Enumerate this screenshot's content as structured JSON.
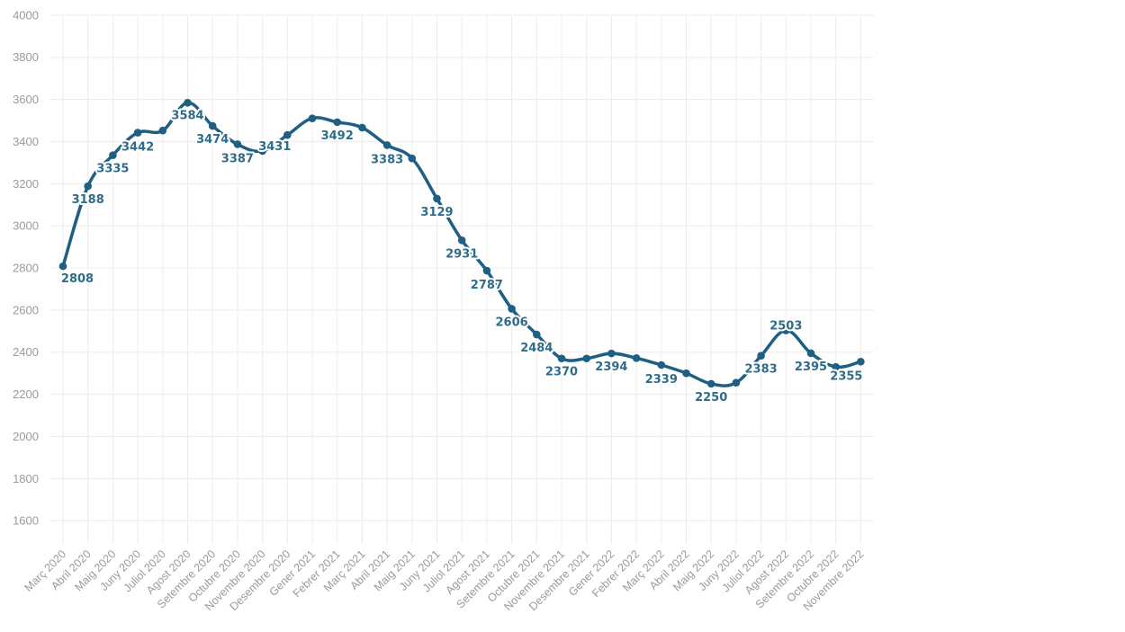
{
  "chart_data": {
    "type": "line",
    "title": "",
    "xlabel": "",
    "ylabel": "",
    "ylim": [
      1500,
      4000
    ],
    "yticks": [
      1600,
      1800,
      2000,
      2200,
      2400,
      2600,
      2800,
      3000,
      3200,
      3400,
      3600,
      3800,
      4000
    ],
    "grid": true,
    "legend": "none",
    "color": "#1f5f84",
    "label_color": "#2e6c8a",
    "categories": [
      "Març 2020",
      "Abril 2020",
      "Maig 2020",
      "Juny 2020",
      "Juliol 2020",
      "Agost 2020",
      "Setembre 2020",
      "Octubre 2020",
      "Novembre 2020",
      "Desembre 2020",
      "Gener 2021",
      "Febrer 2021",
      "Març 2021",
      "Abril 2021",
      "Maig 2021",
      "Juny 2021",
      "Juliol 2021",
      "Agost 2021",
      "Setembre 2021",
      "Octubre 2021",
      "Novembre 2021",
      "Desembre 2021",
      "Gener 2022",
      "Febrer 2022",
      "Març 2022",
      "Abril 2022",
      "Maig 2022",
      "Juny 2022",
      "Juliol 2022",
      "Agost 2022",
      "Setembre 2022",
      "Octubre 2022",
      "Novembre 2022"
    ],
    "series": [
      {
        "values": [
          2808,
          3188,
          3335,
          3442,
          3452,
          3584,
          3474,
          3387,
          3355,
          3431,
          3510,
          3492,
          3466,
          3383,
          3320,
          3129,
          2931,
          2787,
          2606,
          2484,
          2370,
          2370,
          2394,
          2372,
          2339,
          2300,
          2250,
          2255,
          2383,
          2503,
          2395,
          2330,
          2355
        ],
        "labels": [
          "2808",
          "3188",
          "3335",
          "3442",
          "",
          "3584",
          "3474",
          "3387",
          "",
          "3431",
          "",
          "3492",
          "",
          "3383",
          "",
          "3129",
          "2931",
          "2787",
          "2606",
          "2484",
          "2370",
          "",
          "2394",
          "",
          "2339",
          "",
          "2250",
          "",
          "2383",
          "2503",
          "2395",
          "",
          "2355"
        ]
      }
    ]
  }
}
